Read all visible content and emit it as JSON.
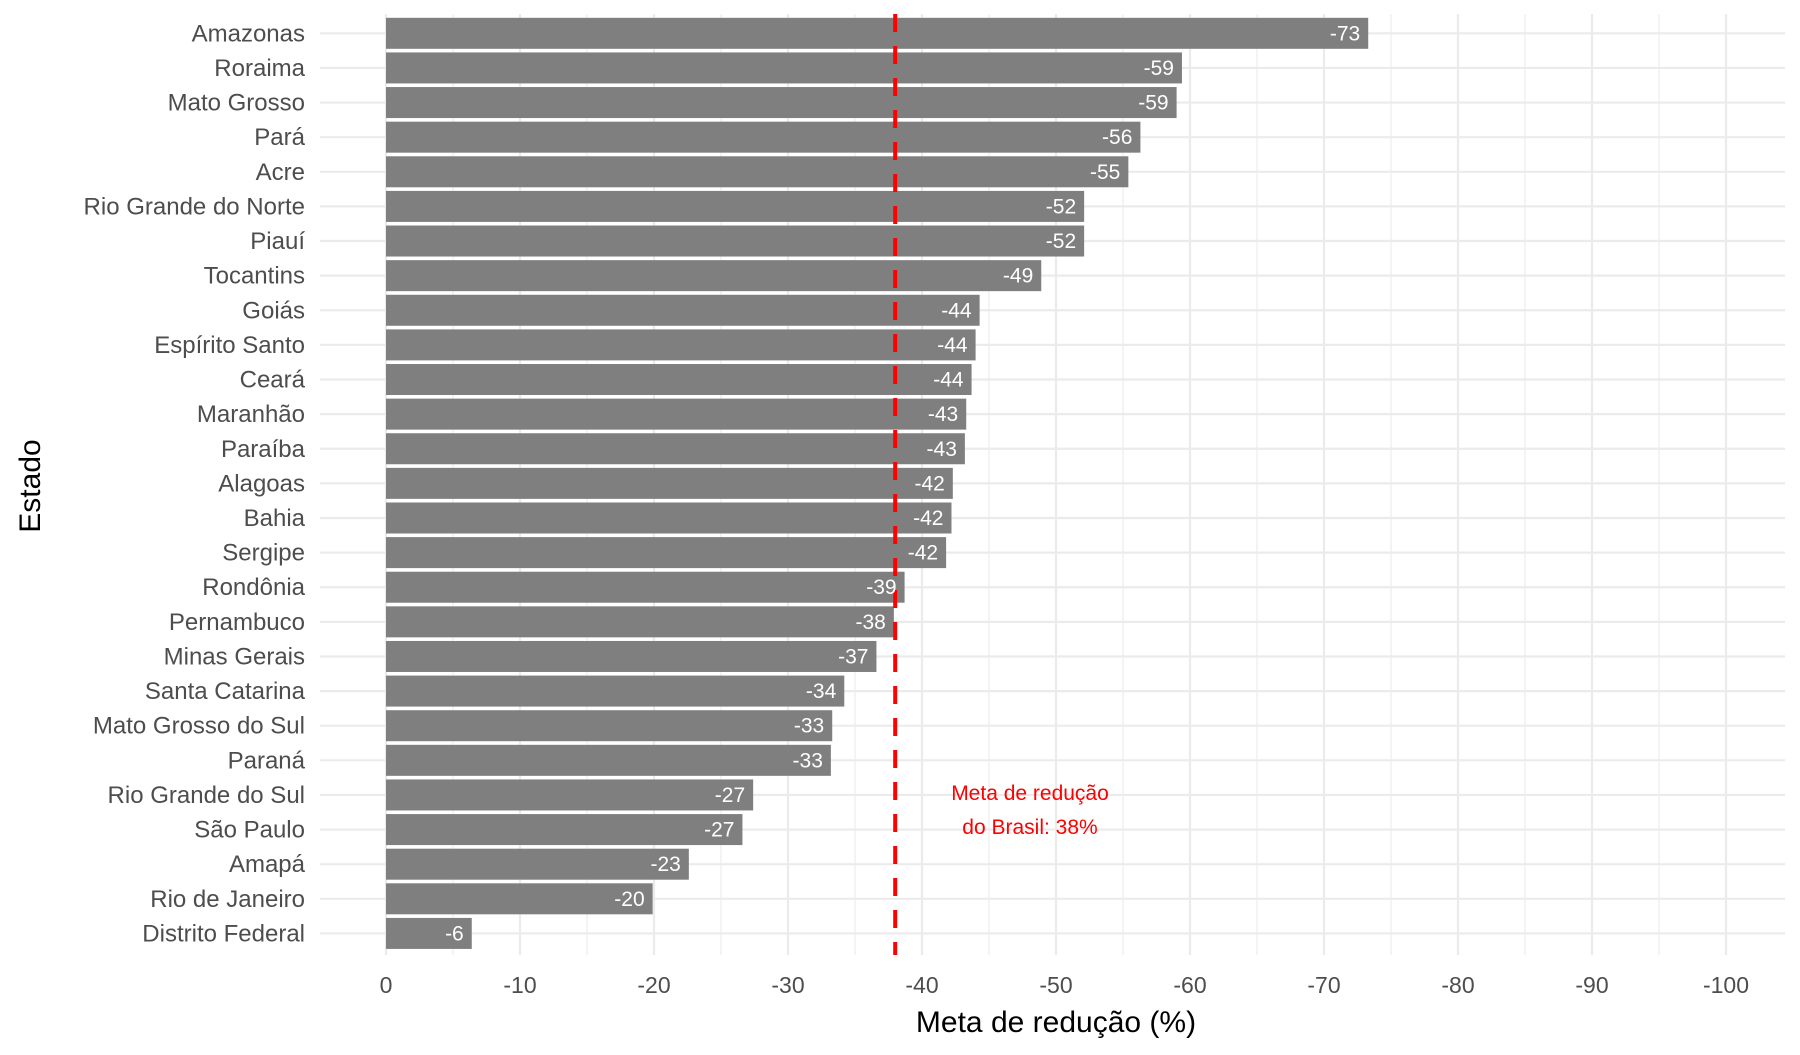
{
  "chart_data": {
    "type": "bar",
    "orientation": "horizontal",
    "xlabel": "Meta de redução (%)",
    "ylabel": "Estado",
    "xlim": [
      0,
      -100
    ],
    "xticks": [
      0,
      -10,
      -20,
      -30,
      -40,
      -50,
      -60,
      -70,
      -80,
      -90,
      -100
    ],
    "grid": true,
    "categories": [
      "Amazonas",
      "Roraima",
      "Mato Grosso",
      "Pará",
      "Acre",
      "Rio Grande do Norte",
      "Piauí",
      "Tocantins",
      "Goiás",
      "Espírito Santo",
      "Ceará",
      "Maranhão",
      "Paraíba",
      "Alagoas",
      "Bahia",
      "Sergipe",
      "Rondônia",
      "Pernambuco",
      "Minas Gerais",
      "Santa Catarina",
      "Mato Grosso do Sul",
      "Paraná",
      "Rio Grande do Sul",
      "São Paulo",
      "Amapá",
      "Rio de Janeiro",
      "Distrito Federal"
    ],
    "values": [
      -73.3,
      -59.4,
      -59.0,
      -56.3,
      -55.4,
      -52.1,
      -52.1,
      -48.9,
      -44.3,
      -44.0,
      -43.7,
      -43.3,
      -43.2,
      -42.3,
      -42.2,
      -41.8,
      -38.7,
      -37.9,
      -36.6,
      -34.2,
      -33.3,
      -33.2,
      -27.4,
      -26.6,
      -22.6,
      -19.9,
      -6.4
    ],
    "data_labels": [
      "-73",
      "-59",
      "-59",
      "-56",
      "-55",
      "-52",
      "-52",
      "-49",
      "-44",
      "-44",
      "-44",
      "-43",
      "-43",
      "-42",
      "-42",
      "-42",
      "-39",
      "-38",
      "-37",
      "-34",
      "-33",
      "-33",
      "-27",
      "-27",
      "-23",
      "-20",
      "-6"
    ],
    "reference_line": {
      "value": -38,
      "style": "dashed",
      "color": "#ff0000",
      "annotation": [
        "Meta de redução",
        "do Brasil: 38%"
      ]
    },
    "colors": {
      "bar": "#7f7f7f",
      "bar_label": "#ffffff",
      "grid": "#ebebeb",
      "reference": "#ff0000"
    }
  }
}
